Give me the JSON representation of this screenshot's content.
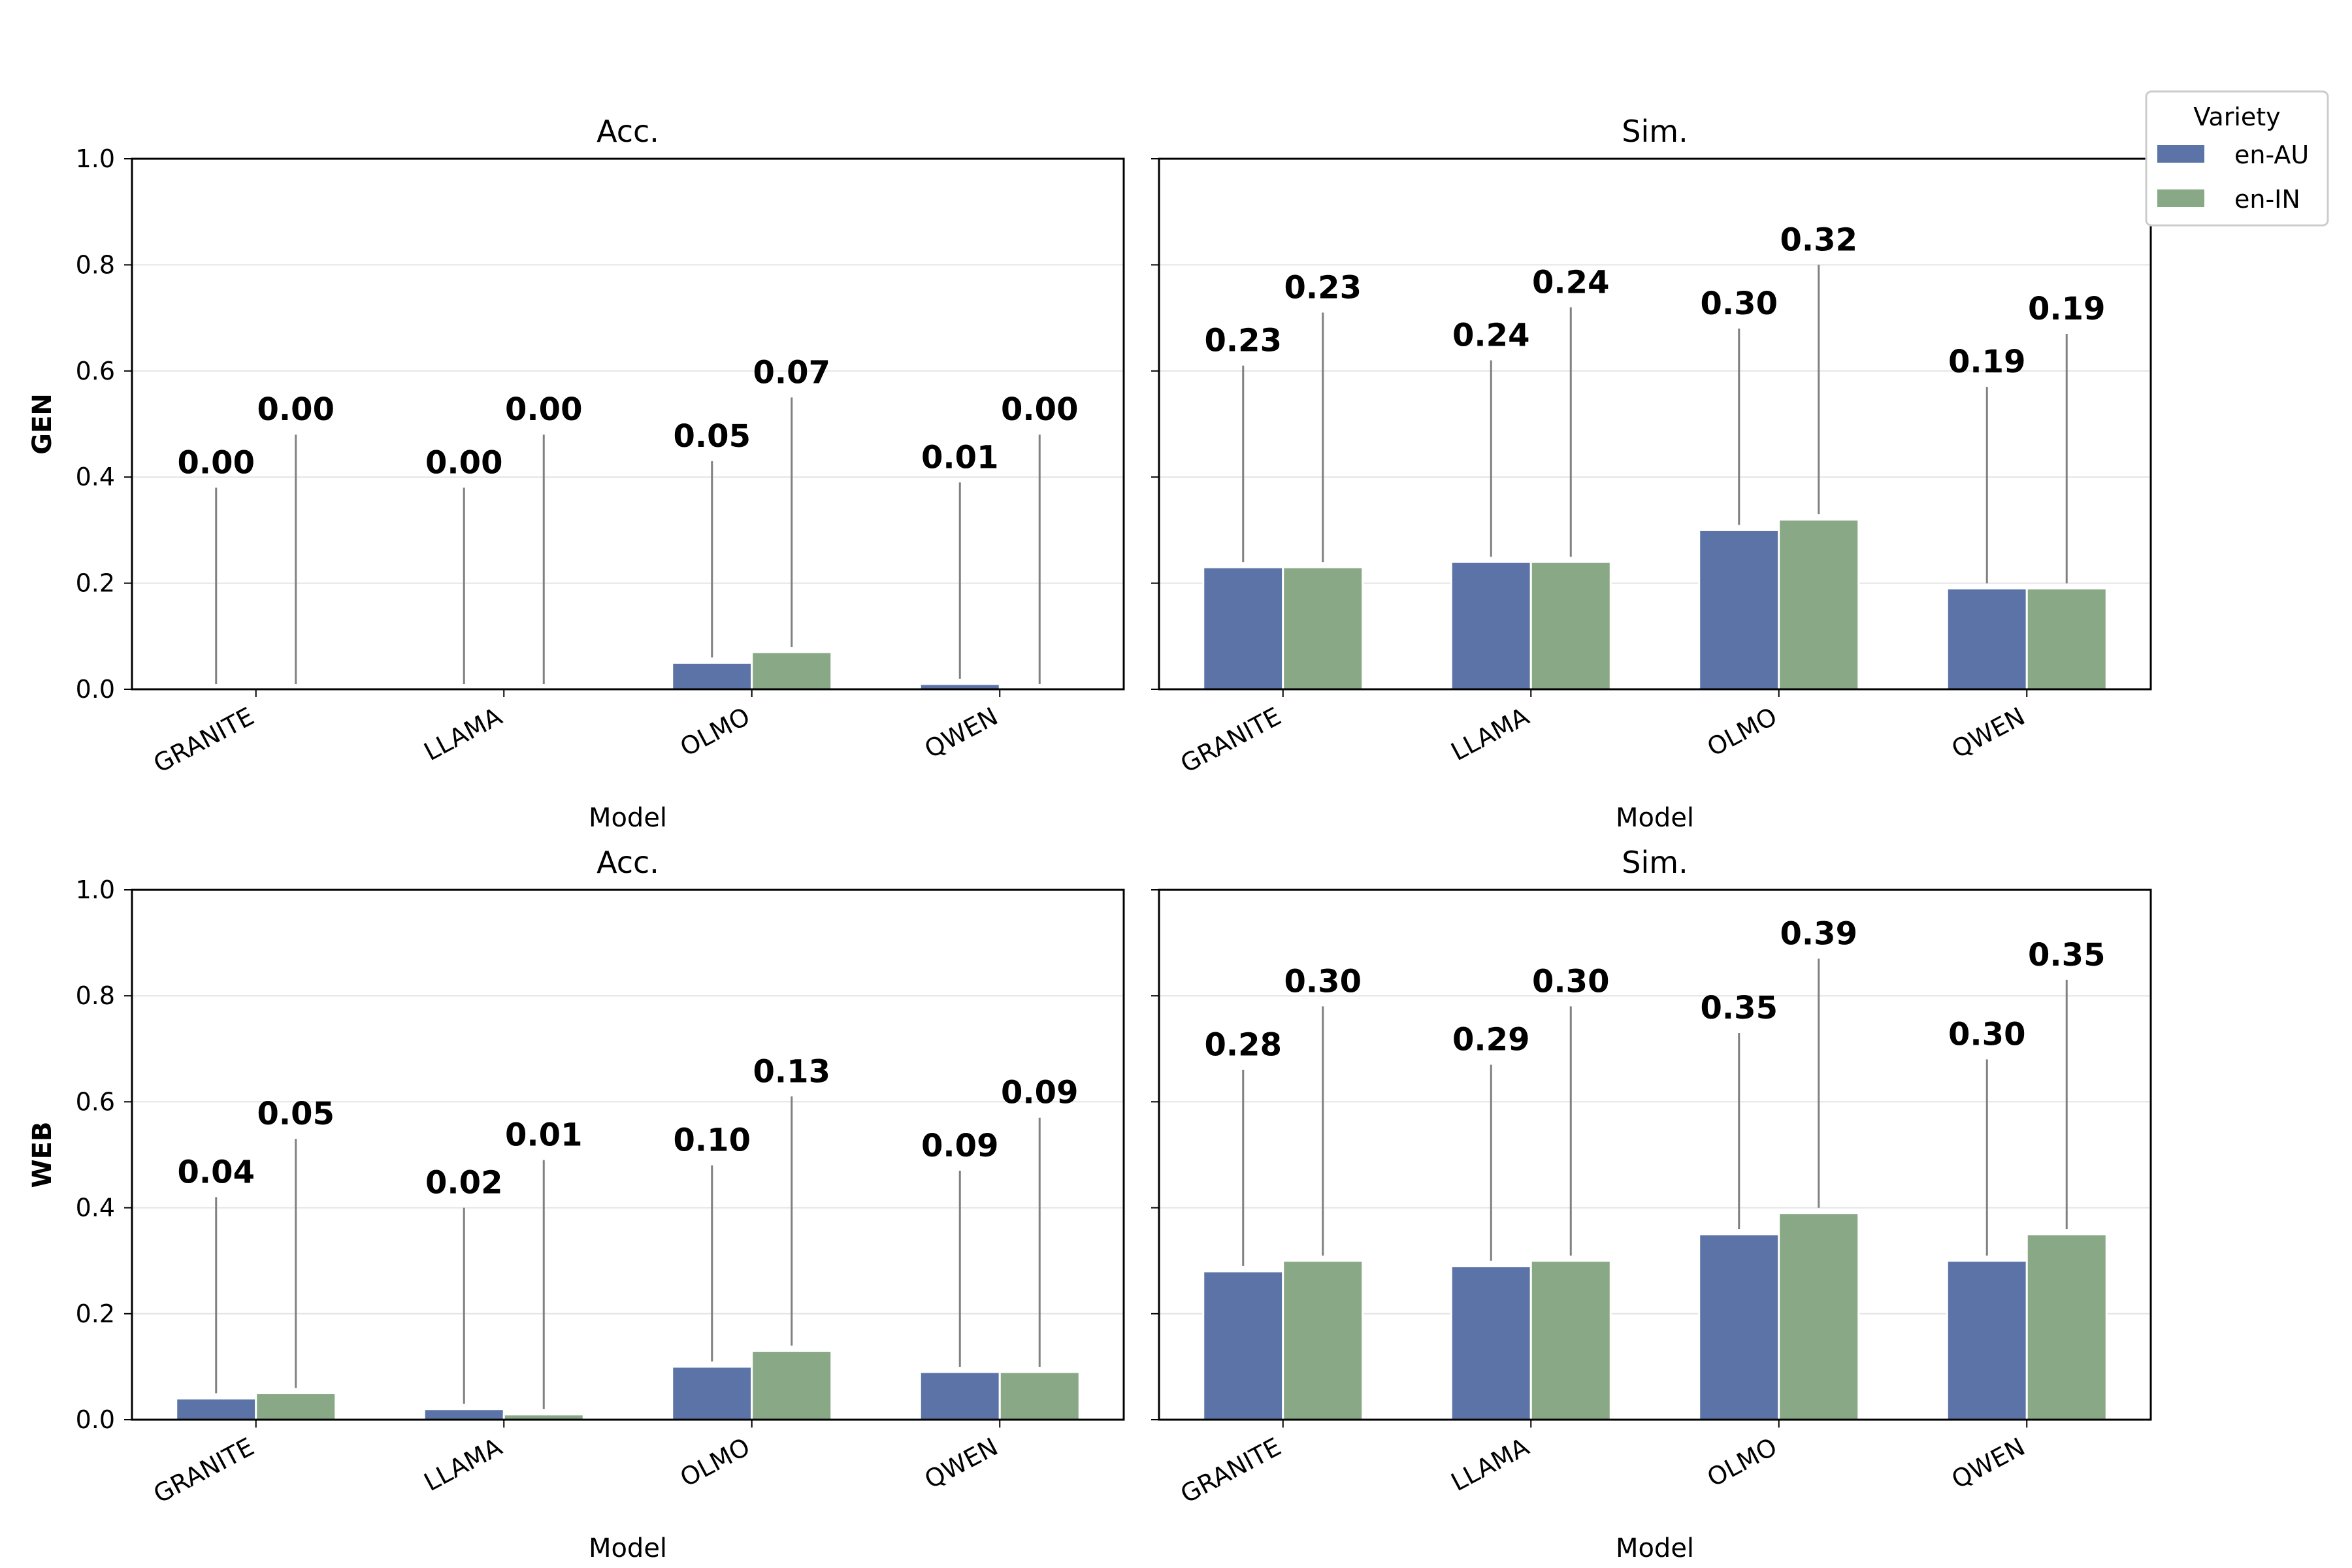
{
  "legend": {
    "title": "Variety",
    "items": [
      {
        "label": "en-AU",
        "color": "#5b73a6"
      },
      {
        "label": "en-IN",
        "color": "#88a886"
      }
    ]
  },
  "chart_data": [
    {
      "type": "bar",
      "row_label": "GEN",
      "title": "Acc.",
      "xlabel": "Model",
      "categories": [
        "GRANITE",
        "LLAMA",
        "OLMO",
        "QWEN"
      ],
      "ylim": [
        0,
        1.0
      ],
      "yticks": [
        "0.0",
        "0.2",
        "0.4",
        "0.6",
        "0.8",
        "1.0"
      ],
      "grid": true,
      "series": [
        {
          "name": "en-AU",
          "values": [
            0.0,
            0.0,
            0.05,
            0.01
          ],
          "labels": [
            "0.00",
            "0.00",
            "0.05",
            "0.01"
          ]
        },
        {
          "name": "en-IN",
          "values": [
            0.0,
            0.0,
            0.07,
            0.0
          ],
          "labels": [
            "0.00",
            "0.00",
            "0.07",
            "0.00"
          ]
        }
      ]
    },
    {
      "type": "bar",
      "row_label": "",
      "title": "Sim.",
      "xlabel": "Model",
      "categories": [
        "GRANITE",
        "LLAMA",
        "OLMO",
        "QWEN"
      ],
      "ylim": [
        0,
        1.0
      ],
      "yticks": [],
      "grid": true,
      "series": [
        {
          "name": "en-AU",
          "values": [
            0.23,
            0.24,
            0.3,
            0.19
          ],
          "labels": [
            "0.23",
            "0.24",
            "0.30",
            "0.19"
          ]
        },
        {
          "name": "en-IN",
          "values": [
            0.23,
            0.24,
            0.32,
            0.19
          ],
          "labels": [
            "0.23",
            "0.24",
            "0.32",
            "0.19"
          ]
        }
      ]
    },
    {
      "type": "bar",
      "row_label": "WEB",
      "title": "Acc.",
      "xlabel": "Model",
      "categories": [
        "GRANITE",
        "LLAMA",
        "OLMO",
        "QWEN"
      ],
      "ylim": [
        0,
        1.0
      ],
      "yticks": [
        "0.0",
        "0.2",
        "0.4",
        "0.6",
        "0.8",
        "1.0"
      ],
      "grid": true,
      "series": [
        {
          "name": "en-AU",
          "values": [
            0.04,
            0.02,
            0.1,
            0.09
          ],
          "labels": [
            "0.04",
            "0.02",
            "0.10",
            "0.09"
          ]
        },
        {
          "name": "en-IN",
          "values": [
            0.05,
            0.01,
            0.13,
            0.09
          ],
          "labels": [
            "0.05",
            "0.01",
            "0.13",
            "0.09"
          ]
        }
      ]
    },
    {
      "type": "bar",
      "row_label": "",
      "title": "Sim.",
      "xlabel": "Model",
      "categories": [
        "GRANITE",
        "LLAMA",
        "OLMO",
        "QWEN"
      ],
      "ylim": [
        0,
        1.0
      ],
      "yticks": [],
      "grid": true,
      "series": [
        {
          "name": "en-AU",
          "values": [
            0.28,
            0.29,
            0.35,
            0.3
          ],
          "labels": [
            "0.28",
            "0.29",
            "0.35",
            "0.30"
          ]
        },
        {
          "name": "en-IN",
          "values": [
            0.3,
            0.3,
            0.39,
            0.35
          ],
          "labels": [
            "0.30",
            "0.30",
            "0.39",
            "0.35"
          ]
        }
      ]
    }
  ]
}
